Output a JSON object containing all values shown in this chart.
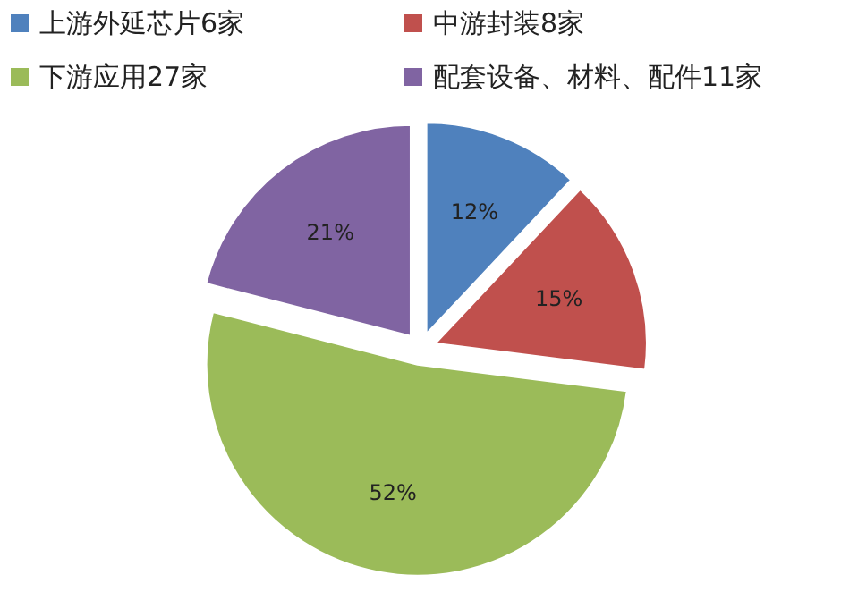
{
  "chart_data": {
    "type": "pie",
    "categories": [
      "上游外延芯片6家",
      "中游封装8家",
      "下游应用27家",
      "配套设备、材料、配件11家"
    ],
    "values": [
      12,
      15,
      52,
      21
    ],
    "colors": [
      "#4f81bd",
      "#c0504d",
      "#9bbb59",
      "#8064a2"
    ],
    "value_labels": [
      "12%",
      "15%",
      "52%",
      "21%"
    ],
    "legend": "top"
  }
}
